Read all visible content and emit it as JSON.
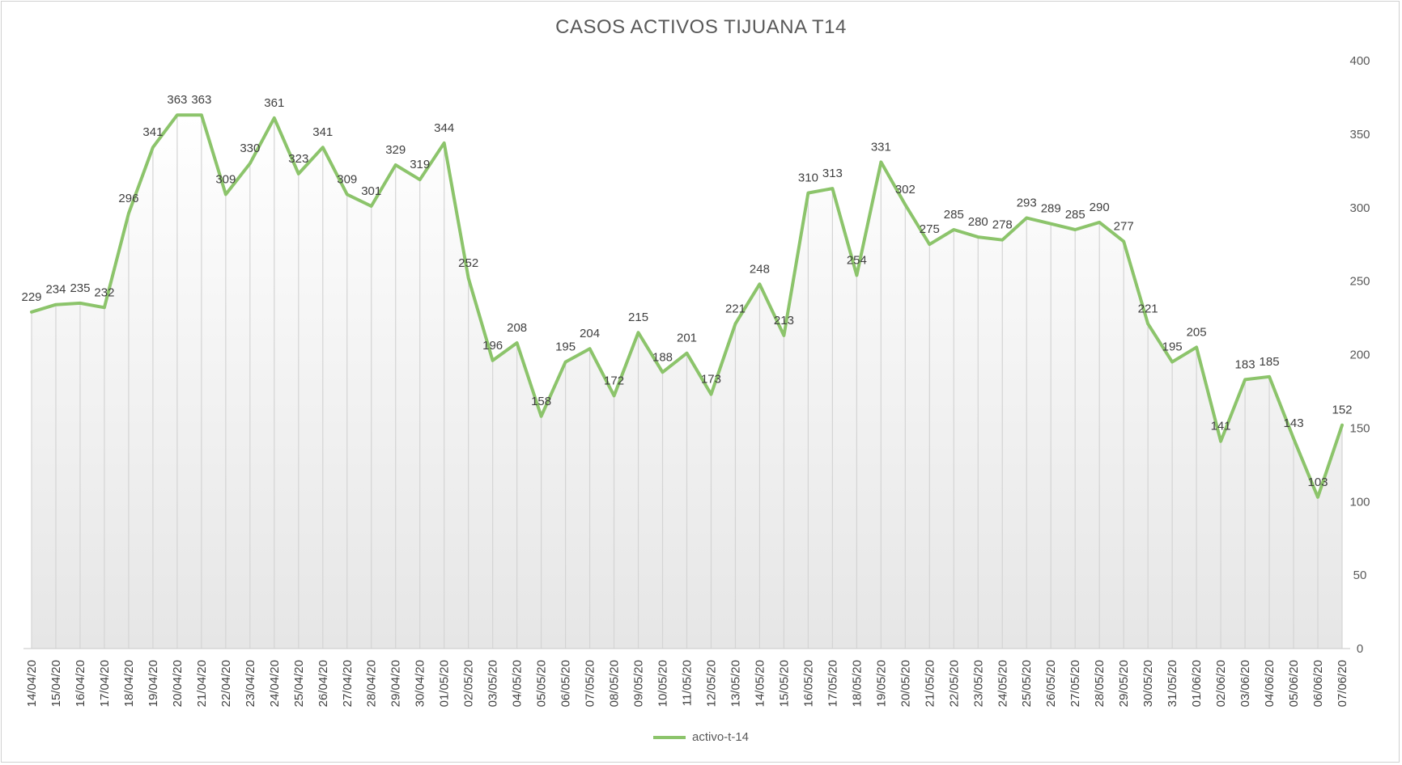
{
  "chart_data": {
    "type": "line",
    "title": "CASOS ACTIVOS TIJUANA T14",
    "xlabel": "",
    "ylabel": "",
    "ylim": [
      0,
      400
    ],
    "yticks": [
      0,
      50,
      100,
      150,
      200,
      250,
      300,
      350,
      400
    ],
    "y_axis_position": "right",
    "grid": "vertical gridlines under line, gradient area fill",
    "legend": "bottom",
    "categories": [
      "14/04/20",
      "15/04/20",
      "16/04/20",
      "17/04/20",
      "18/04/20",
      "19/04/20",
      "20/04/20",
      "21/04/20",
      "22/04/20",
      "23/04/20",
      "24/04/20",
      "25/04/20",
      "26/04/20",
      "27/04/20",
      "28/04/20",
      "29/04/20",
      "30/04/20",
      "01/05/20",
      "02/05/20",
      "03/05/20",
      "04/05/20",
      "05/05/20",
      "06/05/20",
      "07/05/20",
      "08/05/20",
      "09/05/20",
      "10/05/20",
      "11/05/20",
      "12/05/20",
      "13/05/20",
      "14/05/20",
      "15/05/20",
      "16/05/20",
      "17/05/20",
      "18/05/20",
      "19/05/20",
      "20/05/20",
      "21/05/20",
      "22/05/20",
      "23/05/20",
      "24/05/20",
      "25/05/20",
      "26/05/20",
      "27/05/20",
      "28/05/20",
      "29/05/20",
      "30/05/20",
      "31/05/20",
      "01/06/20",
      "02/06/20",
      "03/06/20",
      "04/06/20",
      "05/06/20",
      "06/06/20",
      "07/06/20"
    ],
    "series": [
      {
        "name": "activo-t-14",
        "color": "#8cc46b",
        "values": [
          229,
          234,
          235,
          232,
          296,
          341,
          363,
          363,
          309,
          330,
          361,
          323,
          341,
          309,
          301,
          329,
          319,
          344,
          252,
          196,
          208,
          158,
          195,
          204,
          172,
          215,
          188,
          201,
          173,
          221,
          248,
          213,
          310,
          313,
          254,
          331,
          302,
          275,
          285,
          280,
          278,
          293,
          289,
          285,
          290,
          277,
          221,
          195,
          205,
          141,
          183,
          185,
          143,
          103,
          152
        ]
      }
    ]
  }
}
